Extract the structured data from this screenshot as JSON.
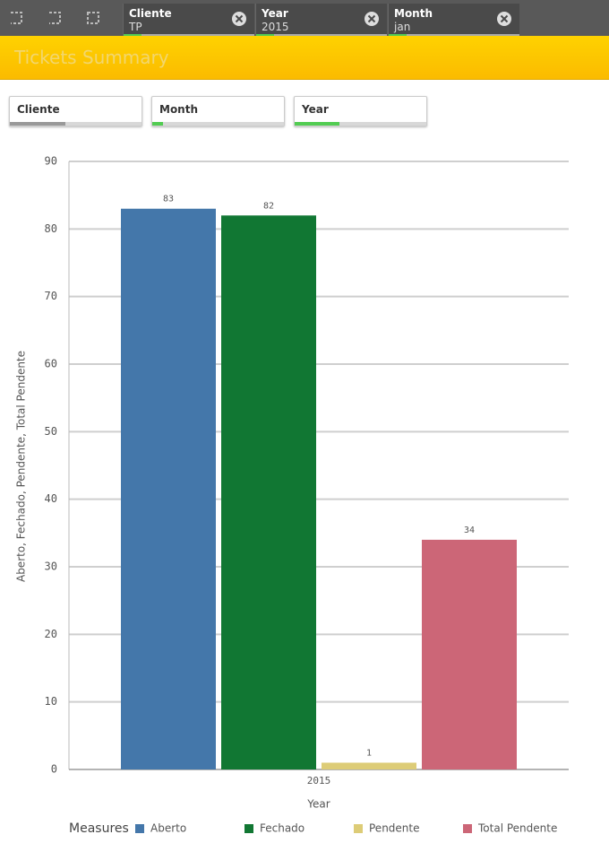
{
  "selections": [
    {
      "field": "Cliente",
      "value": "TP"
    },
    {
      "field": "Year",
      "value": "2015"
    },
    {
      "field": "Month",
      "value": "jan"
    }
  ],
  "header": {
    "title": "Tickets Summary"
  },
  "filters": [
    "Cliente",
    "Month",
    "Year"
  ],
  "chart_data": {
    "type": "bar",
    "x_label": "Year",
    "y_label": "Aberto, Fechado, Pendente, Total Pendente",
    "categories": [
      "2015"
    ],
    "series": [
      {
        "name": "Aberto",
        "color": "#4477aa",
        "values": [
          83
        ]
      },
      {
        "name": "Fechado",
        "color": "#117733",
        "values": [
          82
        ]
      },
      {
        "name": "Pendente",
        "color": "#ddcc77",
        "values": [
          1
        ]
      },
      {
        "name": "Total Pendente",
        "color": "#cc6677",
        "values": [
          34
        ]
      }
    ],
    "ylim": [
      0,
      90
    ],
    "yticks": [
      0,
      10,
      20,
      30,
      40,
      50,
      60,
      70,
      80,
      90
    ],
    "grid": true,
    "legend_title": "Measures",
    "legend": "bottom"
  }
}
